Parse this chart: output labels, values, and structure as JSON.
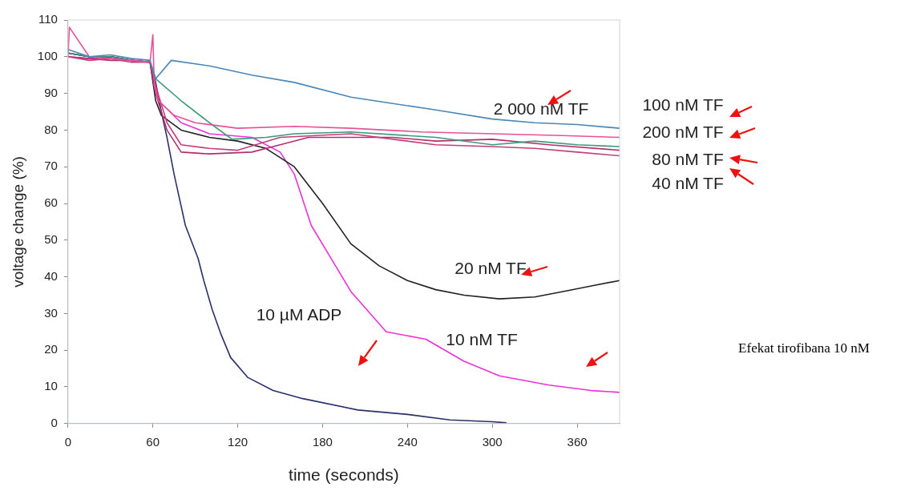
{
  "chart_data": {
    "type": "line",
    "xlabel": "time (seconds)",
    "ylabel": "voltage change (%)",
    "xlim": [
      0,
      390
    ],
    "xticks": [
      0,
      60,
      120,
      180,
      240,
      300,
      360
    ],
    "ylim": [
      0,
      110
    ],
    "yticks": [
      0,
      10,
      20,
      30,
      40,
      50,
      60,
      70,
      80,
      90,
      100,
      110
    ],
    "grid": false,
    "legend": false,
    "marker": "none",
    "line_style": "solid",
    "annotations": [
      "2 000 nM TF",
      "100 nM TF",
      "200 nM TF",
      "80 nM TF",
      "40 nM TF",
      "20 nM TF",
      "10 µM ADP",
      "10 nM TF",
      "Efekat tirofibana 10 nM"
    ],
    "series": [
      {
        "color": "#4a86b8",
        "x": [
          0,
          15,
          30,
          45,
          58,
          62,
          73,
          100,
          130,
          160,
          200,
          225,
          260,
          300,
          330,
          360,
          390
        ],
        "values": [
          102,
          100,
          100.5,
          99.5,
          99,
          94,
          99,
          97.5,
          95,
          93,
          89,
          87.5,
          85.5,
          83,
          82,
          81.5,
          80.5
        ]
      },
      {
        "color": "#e8509a",
        "x": [
          0,
          1,
          15,
          30,
          45,
          58,
          60,
          61,
          64,
          75,
          90,
          120,
          160,
          200,
          250,
          300,
          350,
          390
        ],
        "values": [
          100,
          108,
          100,
          99.5,
          99,
          98.5,
          106,
          92,
          88,
          84,
          82,
          80.5,
          81,
          80.5,
          79.5,
          79,
          78.5,
          78
        ]
      },
      {
        "color": "#3a9a7a",
        "x": [
          0,
          15,
          30,
          45,
          58,
          62,
          80,
          100,
          116,
          140,
          160,
          200,
          260,
          300,
          330,
          360,
          390
        ],
        "values": [
          101,
          100,
          100,
          99,
          98.5,
          94,
          88,
          82,
          77.5,
          78,
          79,
          79.5,
          78,
          76,
          77,
          76,
          75.5
        ]
      },
      {
        "color": "#c83c78",
        "x": [
          0,
          15,
          30,
          45,
          58,
          62,
          70,
          80,
          100,
          120,
          150,
          200,
          230,
          260,
          300,
          330,
          360,
          390
        ],
        "values": [
          100,
          99,
          99.5,
          98.5,
          98.5,
          92,
          82,
          76,
          75,
          74.5,
          78,
          79,
          77.5,
          76,
          75.5,
          75,
          74,
          73
        ]
      },
      {
        "color": "#b03070",
        "x": [
          0,
          15,
          30,
          45,
          58,
          62,
          70,
          80,
          100,
          130,
          150,
          170,
          230,
          260,
          300,
          340,
          390
        ],
        "values": [
          100,
          99.5,
          99,
          99,
          98.5,
          90,
          80,
          74,
          73.5,
          74,
          76,
          78,
          78,
          77,
          77.5,
          76,
          74.5
        ]
      },
      {
        "color": "#222222",
        "x": [
          0,
          15,
          30,
          45,
          58,
          62,
          66,
          80,
          100,
          120,
          140,
          160,
          180,
          200,
          220,
          240,
          260,
          280,
          305,
          330,
          350,
          370,
          390
        ],
        "values": [
          101,
          100,
          100,
          99,
          98.5,
          88,
          84,
          80,
          78,
          77,
          75,
          70,
          60,
          49,
          43,
          39,
          36.5,
          35,
          34,
          34.5,
          36,
          37.5,
          39
        ]
      },
      {
        "color": "#ee30d8",
        "x": [
          0,
          15,
          30,
          45,
          58,
          62,
          64,
          80,
          100,
          130,
          150,
          160,
          172,
          186,
          200,
          225,
          253,
          280,
          305,
          340,
          370,
          390
        ],
        "values": [
          100,
          99.5,
          100,
          99,
          98.5,
          92,
          88,
          82,
          79,
          78,
          74,
          68,
          54,
          45,
          36,
          25,
          23,
          17,
          13,
          10.5,
          9,
          8.5
        ]
      },
      {
        "color": "#2a2f6a",
        "x": [
          0,
          15,
          30,
          45,
          58,
          62,
          66,
          70,
          75,
          83,
          92,
          96,
          102,
          108,
          115,
          127,
          145,
          166,
          205,
          240,
          270,
          300,
          310
        ],
        "values": [
          101,
          100,
          100,
          99,
          98.5,
          93,
          85,
          78,
          68,
          54,
          45,
          39,
          31,
          24.5,
          18,
          12.6,
          9,
          6.8,
          3.7,
          2.5,
          1,
          0.5,
          0.2
        ]
      }
    ]
  }
}
